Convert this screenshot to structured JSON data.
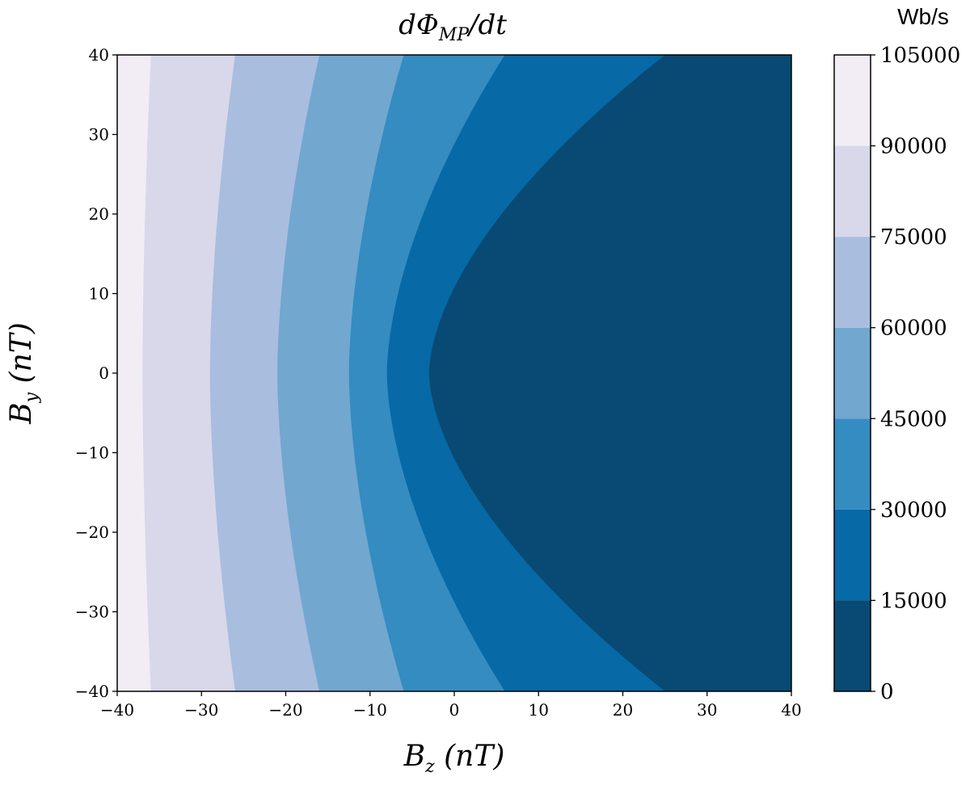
{
  "chart_data": {
    "type": "contour",
    "title_main": "dΦ",
    "title_sub": "MP",
    "title_tail": "/dt",
    "xlabel_main": "B",
    "xlabel_sub": "z",
    "xlabel_tail": " (nT)",
    "ylabel_main": "B",
    "ylabel_sub": "y",
    "ylabel_tail": " (nT)",
    "xlim": [
      -40,
      40
    ],
    "ylim": [
      -40,
      40
    ],
    "x_ticks": [
      "−40",
      "−30",
      "−20",
      "−10",
      "0",
      "10",
      "20",
      "30",
      "40"
    ],
    "y_ticks": [
      "40",
      "30",
      "20",
      "10",
      "0",
      "−10",
      "−20",
      "−30",
      "−40"
    ],
    "x_tick_values": [
      -40,
      -30,
      -20,
      -10,
      0,
      10,
      20,
      30,
      40
    ],
    "y_tick_values": [
      40,
      30,
      20,
      10,
      0,
      -10,
      -20,
      -30,
      -40
    ],
    "colorbar": {
      "unit": "Wb/s",
      "levels": [
        0,
        15000,
        30000,
        45000,
        60000,
        75000,
        90000,
        105000
      ],
      "tick_labels": [
        "105000",
        "90000",
        "75000",
        "60000",
        "45000",
        "30000",
        "15000",
        "0"
      ],
      "colors": [
        "#084a74",
        "#0769a5",
        "#348cc0",
        "#72a7d0",
        "#a9bddf",
        "#d8d8ea",
        "#f2edf5"
      ]
    },
    "contour_boundaries": [
      {
        "level": 15000,
        "bz_at_by0": -3,
        "bz_at_by40": 25
      },
      {
        "level": 30000,
        "bz_at_by0": -8,
        "bz_at_by40": 6
      },
      {
        "level": 45000,
        "bz_at_by0": -12.5,
        "bz_at_by40": -6
      },
      {
        "level": 60000,
        "bz_at_by0": -21,
        "bz_at_by40": -16
      },
      {
        "level": 75000,
        "bz_at_by0": -29,
        "bz_at_by40": -26
      },
      {
        "level": 90000,
        "bz_at_by0": -37,
        "bz_at_by40": -36
      }
    ]
  }
}
